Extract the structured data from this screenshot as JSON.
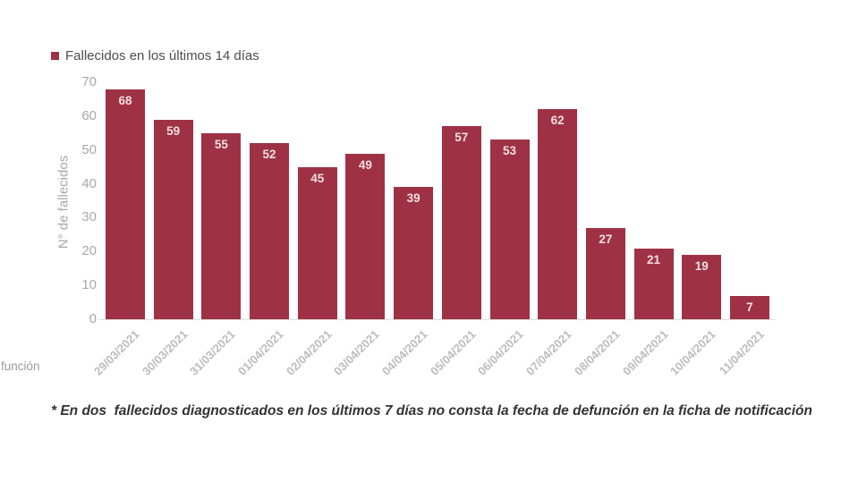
{
  "legend": {
    "label": "Fallecidos en los últimos 14 días"
  },
  "chart_data": {
    "type": "bar",
    "categories": [
      "29/03/2021",
      "30/03/2021",
      "31/03/2021",
      "01/04/2021",
      "02/04/2021",
      "03/04/2021",
      "04/04/2021",
      "05/04/2021",
      "06/04/2021",
      "07/04/2021",
      "08/04/2021",
      "09/04/2021",
      "10/04/2021",
      "11/04/2021"
    ],
    "values": [
      68,
      59,
      55,
      52,
      45,
      49,
      39,
      57,
      53,
      62,
      27,
      21,
      19,
      7
    ],
    "title": "",
    "xlabel": "",
    "ylabel": "N° de fallecidos",
    "ylim": [
      0,
      70
    ],
    "yticks": [
      0,
      10,
      20,
      30,
      40,
      50,
      60,
      70
    ],
    "grid": false,
    "legend": [
      "Fallecidos en los últimos 14 días"
    ],
    "legend_position": "top-left",
    "value_labels_shown": true
  },
  "colors": {
    "bar": "#9e3244",
    "value_label": "#f2dde2",
    "axis_text": "#a8a8a8",
    "date_text": "#bcbcbc",
    "legend_text": "#4d4d4d",
    "footnote_text": "#333333",
    "baseline": "#dcdcdc",
    "fragment_text": "#9a9a9a"
  },
  "footnote": "* En dos  fallecidos diagnosticados en los últimos 7 días no consta la fecha de defunción en la ficha de notificación",
  "left_edge_fragment": "función"
}
